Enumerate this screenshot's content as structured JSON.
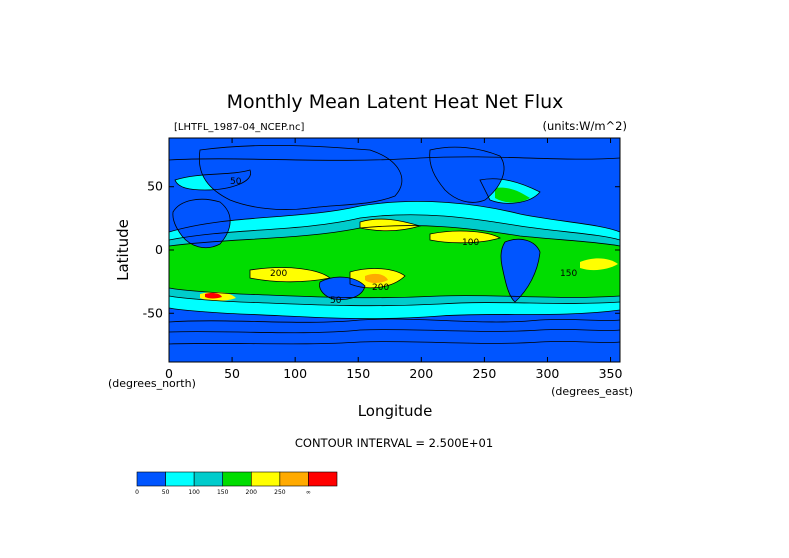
{
  "chart_data": {
    "type": "heatmap",
    "title": "Monthly Mean Latent Heat Net Flux",
    "subtitle_left": "[LHTFL_1987-04_NCEP.nc]",
    "subtitle_right": "(units:W/m^2)",
    "xlabel": "Longitude",
    "ylabel": "Latitude",
    "x_unit_label": "(degrees_east)",
    "y_unit_label": "(degrees_north)",
    "xlim": [
      0,
      357.5
    ],
    "ylim": [
      -88.5,
      88.5
    ],
    "x_ticks": [
      0,
      50,
      100,
      150,
      200,
      250,
      300,
      350
    ],
    "y_ticks": [
      -50,
      0,
      50
    ],
    "contour_interval_text": "CONTOUR INTERVAL = 2.500E+01",
    "colorbar": {
      "levels": [
        "0",
        "50",
        "100",
        "150",
        "200",
        "250",
        "∞"
      ],
      "colors": [
        "#0055ff",
        "#00ffff",
        "#00cccc",
        "#00dd00",
        "#ffff00",
        "#ffaa00",
        "#ff0000"
      ]
    },
    "labels_on_map": [
      "100",
      "200",
      "150",
      "200",
      "50",
      "50"
    ]
  }
}
